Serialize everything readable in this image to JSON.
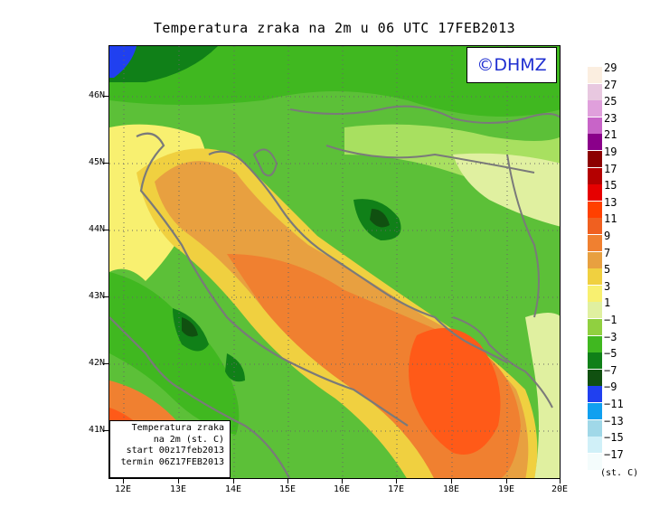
{
  "title": "Temperatura zraka na 2m u 06 UTC 17FEB2013",
  "logo_text": "©DHMZ",
  "infobox": {
    "line1": "Temperatura zraka",
    "line2": "na 2m (st. C)",
    "line3": "start 00z17feb2013",
    "line4": "termin 06Z17FEB2013"
  },
  "axes": {
    "y_labels": [
      "46N",
      "45N",
      "44N",
      "43N",
      "42N",
      "41N"
    ],
    "x_labels": [
      "12E",
      "13E",
      "14E",
      "15E",
      "16E",
      "17E",
      "18E",
      "19E",
      "20E"
    ]
  },
  "legend": {
    "labels": [
      "29",
      "27",
      "25",
      "23",
      "21",
      "19",
      "17",
      "15",
      "13",
      "11",
      "9",
      "7",
      "5",
      "3",
      "1",
      "−1",
      "−3",
      "−5",
      "−7",
      "−9",
      "−11",
      "−13",
      "−15",
      "−17"
    ],
    "colors": [
      "#fbeee0",
      "#e8c8e0",
      "#e0a0dc",
      "#c864c8",
      "#8a008a",
      "#8c0000",
      "#b40000",
      "#e60000",
      "#ff4000",
      "#f06020",
      "#f08030",
      "#e8a040",
      "#f0d040",
      "#f8f070",
      "#e0f0a0",
      "#90d040",
      "#40b820",
      "#108018",
      "#105010",
      "#2040f0",
      "#10a0f0",
      "#a0d8e8",
      "#d0f0f8",
      "#f4fcfc"
    ],
    "unit": "(st. C)"
  }
}
